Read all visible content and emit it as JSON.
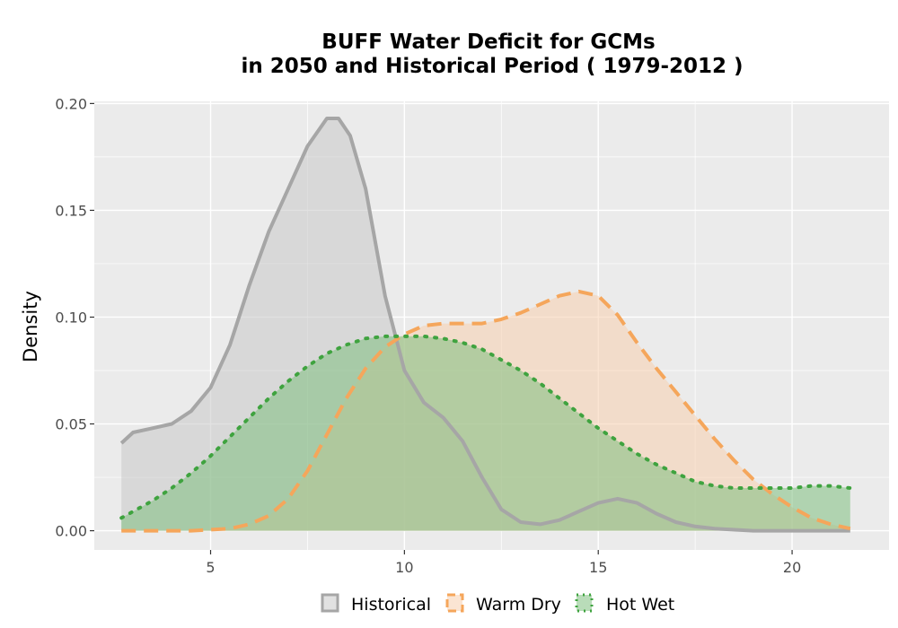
{
  "chart_data": {
    "type": "area",
    "title_lines": [
      "BUFF  Water Deficit for GCMs",
      "in 2050 and Historical Period ( 1979-2012 )"
    ],
    "xlabel": "",
    "ylabel": "Density",
    "xlim": [
      2.0,
      22.5
    ],
    "ylim": [
      -0.009,
      0.201
    ],
    "x_ticks": [
      5,
      10,
      15,
      20
    ],
    "y_ticks": [
      0.0,
      0.05,
      0.1,
      0.15,
      0.2
    ],
    "y_tick_labels": [
      "0.00",
      "0.05",
      "0.10",
      "0.15",
      "0.20"
    ],
    "grid": true,
    "legend_position": "bottom",
    "series": [
      {
        "name": "Historical",
        "line_style": "solid",
        "line_color": "#a6a6a6",
        "fill_color": "#c8c8c8",
        "fill_opacity": 0.55,
        "x": [
          2.7,
          3.0,
          3.5,
          4.0,
          4.5,
          5.0,
          5.5,
          6.0,
          6.5,
          7.0,
          7.5,
          8.0,
          8.3,
          8.6,
          9.0,
          9.5,
          10.0,
          10.5,
          11.0,
          11.5,
          12.0,
          12.5,
          13.0,
          13.5,
          14.0,
          14.5,
          15.0,
          15.5,
          16.0,
          16.5,
          17.0,
          17.5,
          18.0,
          19.0,
          20.0,
          21.5
        ],
        "y": [
          0.041,
          0.046,
          0.048,
          0.05,
          0.056,
          0.067,
          0.087,
          0.115,
          0.14,
          0.16,
          0.18,
          0.193,
          0.193,
          0.185,
          0.16,
          0.11,
          0.075,
          0.06,
          0.053,
          0.042,
          0.025,
          0.01,
          0.004,
          0.003,
          0.005,
          0.009,
          0.013,
          0.015,
          0.013,
          0.008,
          0.004,
          0.002,
          0.001,
          0.0,
          0.0,
          0.0
        ]
      },
      {
        "name": "Warm Dry",
        "line_style": "dashed",
        "line_color": "#f5a65b",
        "fill_color": "#f8cfae",
        "fill_opacity": 0.55,
        "x": [
          2.7,
          3.5,
          4.5,
          5.5,
          6.0,
          6.5,
          7.0,
          7.5,
          8.0,
          8.5,
          9.0,
          9.5,
          10.0,
          10.5,
          11.0,
          11.5,
          12.0,
          12.5,
          13.0,
          13.5,
          14.0,
          14.5,
          15.0,
          15.5,
          16.0,
          16.5,
          17.0,
          17.5,
          18.0,
          18.5,
          19.0,
          19.5,
          20.0,
          20.5,
          21.0,
          21.5
        ],
        "y": [
          0.0,
          0.0,
          0.0,
          0.001,
          0.003,
          0.007,
          0.015,
          0.028,
          0.045,
          0.062,
          0.076,
          0.086,
          0.092,
          0.096,
          0.097,
          0.097,
          0.097,
          0.099,
          0.102,
          0.106,
          0.11,
          0.112,
          0.11,
          0.101,
          0.088,
          0.076,
          0.065,
          0.054,
          0.043,
          0.033,
          0.024,
          0.017,
          0.011,
          0.006,
          0.003,
          0.001
        ]
      },
      {
        "name": "Hot Wet",
        "line_style": "dotted",
        "line_color": "#3fa33f",
        "fill_color": "#7fc07f",
        "fill_opacity": 0.55,
        "x": [
          2.7,
          3.0,
          3.5,
          4.0,
          4.5,
          5.0,
          5.5,
          6.0,
          6.5,
          7.0,
          7.5,
          8.0,
          8.5,
          9.0,
          9.5,
          10.0,
          10.5,
          11.0,
          11.5,
          12.0,
          12.5,
          13.0,
          13.5,
          14.0,
          14.5,
          15.0,
          15.5,
          16.0,
          16.5,
          17.0,
          17.5,
          18.0,
          18.5,
          19.0,
          19.5,
          20.0,
          20.5,
          21.0,
          21.5
        ],
        "y": [
          0.006,
          0.009,
          0.014,
          0.02,
          0.027,
          0.035,
          0.044,
          0.053,
          0.062,
          0.07,
          0.077,
          0.083,
          0.087,
          0.09,
          0.091,
          0.091,
          0.091,
          0.09,
          0.088,
          0.085,
          0.08,
          0.075,
          0.069,
          0.062,
          0.055,
          0.048,
          0.042,
          0.036,
          0.031,
          0.027,
          0.023,
          0.021,
          0.02,
          0.02,
          0.02,
          0.02,
          0.021,
          0.021,
          0.02
        ]
      }
    ]
  }
}
